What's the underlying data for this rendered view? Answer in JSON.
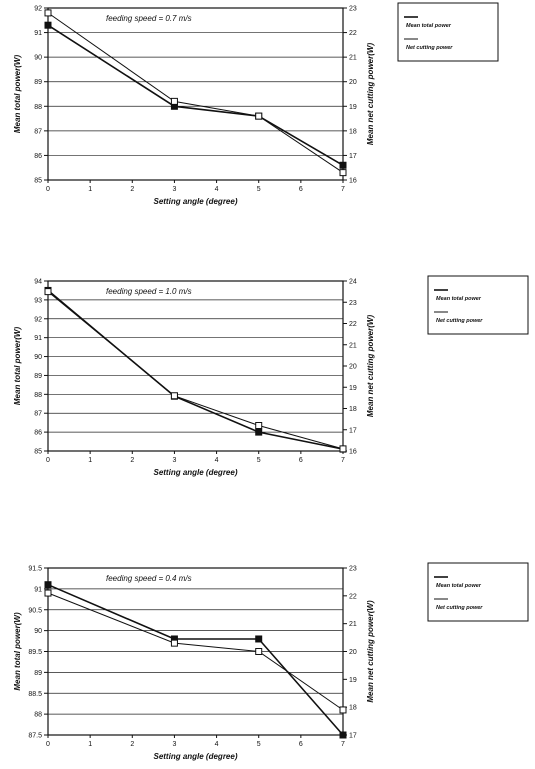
{
  "chart_data": [
    {
      "type": "line",
      "annotation": "feeding speed = 0.7 m/s",
      "xlabel": "Setting angle (degree)",
      "ylabel_left": "Mean total power(W)",
      "ylabel_right": "Mean net cutting power(W)",
      "xlim": [
        0,
        7
      ],
      "x_ticks": [
        "0",
        "1",
        "2",
        "3",
        "4",
        "5",
        "6",
        "7"
      ],
      "ylim_left": [
        85,
        92
      ],
      "ylim_right": [
        16,
        23
      ],
      "left_ticks": [
        "85",
        "86",
        "87",
        "88",
        "89",
        "90",
        "91",
        "92"
      ],
      "right_ticks": [
        "16",
        "17",
        "18",
        "19",
        "20",
        "21",
        "22",
        "23"
      ],
      "grid": true,
      "legend": [
        "Mean total power",
        "Net cutting power"
      ],
      "series": [
        {
          "name": "Mean total power",
          "axis": "left",
          "marker": "filled-square",
          "x": [
            0,
            3,
            5,
            7
          ],
          "y": [
            91.3,
            88,
            87.6,
            85.6
          ]
        },
        {
          "name": "Net cutting power",
          "axis": "right",
          "marker": "open-square",
          "x": [
            0,
            3,
            5,
            7
          ],
          "y": [
            22.8,
            19.2,
            18.6,
            16.3
          ]
        }
      ]
    },
    {
      "type": "line",
      "annotation": "feeding speed = 1.0 m/s",
      "xlabel": "Setting angle (degree)",
      "ylabel_left": "Mean total power(W)",
      "ylabel_right": "Mean net cutting power(W)",
      "xlim": [
        0,
        7
      ],
      "x_ticks": [
        "0",
        "1",
        "2",
        "3",
        "4",
        "5",
        "6",
        "7"
      ],
      "ylim_left": [
        85,
        94
      ],
      "ylim_right": [
        16,
        24
      ],
      "left_ticks": [
        "85",
        "86",
        "87",
        "88",
        "89",
        "90",
        "91",
        "92",
        "93",
        "94"
      ],
      "right_ticks": [
        "16",
        "17",
        "18",
        "19",
        "20",
        "21",
        "22",
        "23",
        "24"
      ],
      "grid": true,
      "legend": [
        "Mean total power",
        "Net cutting power"
      ],
      "series": [
        {
          "name": "Mean total power",
          "axis": "left",
          "marker": "filled-square",
          "x": [
            0,
            3,
            5,
            7
          ],
          "y": [
            93.5,
            87.9,
            86,
            85.1
          ]
        },
        {
          "name": "Net cutting power",
          "axis": "right",
          "marker": "open-square",
          "x": [
            0,
            3,
            5,
            7
          ],
          "y": [
            23.5,
            18.6,
            17.2,
            16.1
          ]
        }
      ]
    },
    {
      "type": "line",
      "annotation": "feeding speed = 0.4 m/s",
      "xlabel": "Setting angle (degree)",
      "ylabel_left": "Mean total power(W)",
      "ylabel_right": "Mean net cutting power(W)",
      "xlim": [
        0,
        7
      ],
      "x_ticks": [
        "0",
        "1",
        "2",
        "3",
        "4",
        "5",
        "6",
        "7"
      ],
      "ylim_left": [
        87.5,
        91.5
      ],
      "ylim_right": [
        17,
        23
      ],
      "left_ticks": [
        "87.5",
        "88",
        "88.5",
        "89",
        "89.5",
        "90",
        "90.5",
        "91",
        "91.5"
      ],
      "right_ticks": [
        "17",
        "18",
        "19",
        "20",
        "21",
        "22",
        "23"
      ],
      "grid": true,
      "legend": [
        "Mean total power",
        "Net cutting power"
      ],
      "series": [
        {
          "name": "Mean total power",
          "axis": "left",
          "marker": "filled-square",
          "x": [
            0,
            3,
            5,
            7
          ],
          "y": [
            91.1,
            89.8,
            89.8,
            87.5
          ]
        },
        {
          "name": "Net cutting power",
          "axis": "right",
          "marker": "open-square",
          "x": [
            0,
            3,
            5,
            7
          ],
          "y": [
            22.1,
            20.3,
            20,
            17.9
          ]
        }
      ]
    }
  ]
}
